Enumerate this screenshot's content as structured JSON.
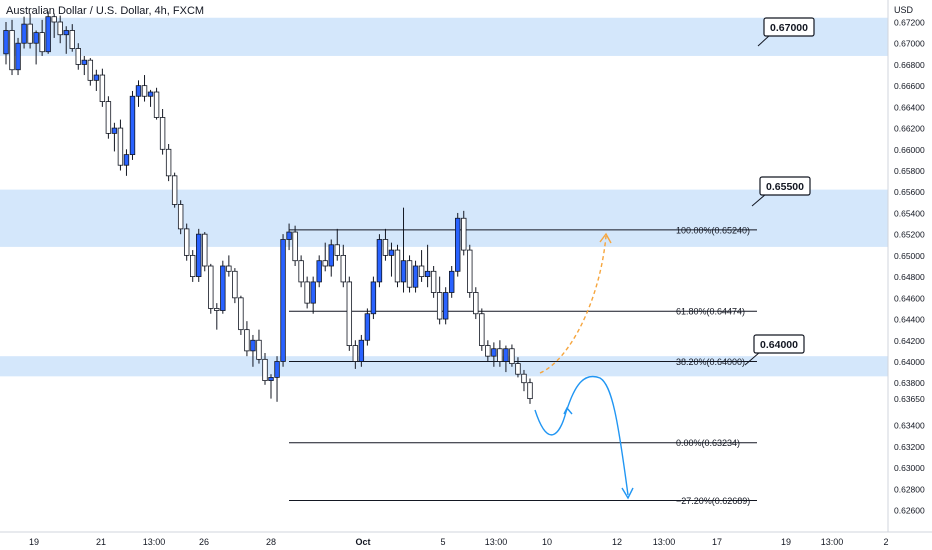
{
  "header": {
    "title": "Australian Dollar / U.S. Dollar, 4h, FXCM",
    "currency": "USD"
  },
  "chart_data": {
    "type": "candlestick",
    "title": "Australian Dollar / U.S. Dollar, 4h, FXCM",
    "y_unit": "USD",
    "ylim": [
      0.6252,
      0.6732
    ],
    "y_ticks": [
      0.672,
      0.67,
      0.668,
      0.666,
      0.664,
      0.662,
      0.66,
      0.658,
      0.656,
      0.654,
      0.652,
      0.65,
      0.648,
      0.646,
      0.644,
      0.642,
      0.64,
      0.638,
      0.6365,
      0.634,
      0.632,
      0.63,
      0.628,
      0.626
    ],
    "y_tick_labels": [
      "0.67200",
      "0.67000",
      "0.66800",
      "0.66600",
      "0.66400",
      "0.66200",
      "0.66000",
      "0.65800",
      "0.65600",
      "0.65400",
      "0.65200",
      "0.65000",
      "0.64800",
      "0.64600",
      "0.64400",
      "0.64200",
      "0.64000",
      "0.63800",
      "0.63650",
      "0.63400",
      "0.63200",
      "0.63000",
      "0.62800",
      "0.62600"
    ],
    "x_ticks": [
      "19",
      "21",
      "13:00",
      "26",
      "28",
      "Oct",
      "5",
      "13:00",
      "10",
      "12",
      "13:00",
      "17",
      "19",
      "13:00",
      "2"
    ],
    "grid": false,
    "colors": {
      "up": "#2962ff",
      "down": "#ffffff",
      "wick": "#131722",
      "zone": "#d4e7fb",
      "fib": "#131722",
      "arrow_up": "#f6a53d",
      "arrow_down": "#2196f3"
    },
    "zones": [
      {
        "low": 0.6688,
        "high": 0.6724,
        "label": "0.67000"
      },
      {
        "low": 0.6508,
        "high": 0.6562,
        "label": "0.65500"
      },
      {
        "low": 0.6386,
        "high": 0.6405,
        "label": "0.64000"
      }
    ],
    "fib_levels": [
      {
        "level": "100.00%",
        "price": 0.6524,
        "label": "100.00%(0.65240)"
      },
      {
        "level": "61.80%",
        "price": 0.64474,
        "label": "61.80%(0.64474)"
      },
      {
        "level": "38.20%",
        "price": 0.64,
        "label": "38.20%(0.64000)"
      },
      {
        "level": "0.00%",
        "price": 0.63234,
        "label": "0.00%(0.63234)"
      },
      {
        "level": "-27.20%",
        "price": 0.62689,
        "label": "−27.20%(0.62689)"
      }
    ],
    "candles": [
      [
        0.669,
        0.672,
        0.668,
        0.6712
      ],
      [
        0.6712,
        0.6722,
        0.667,
        0.6675
      ],
      [
        0.6675,
        0.6705,
        0.667,
        0.67
      ],
      [
        0.67,
        0.6725,
        0.6695,
        0.6718
      ],
      [
        0.6718,
        0.6728,
        0.6695,
        0.67
      ],
      [
        0.67,
        0.6712,
        0.668,
        0.671
      ],
      [
        0.671,
        0.6722,
        0.6688,
        0.6692
      ],
      [
        0.6692,
        0.673,
        0.669,
        0.6725
      ],
      [
        0.6725,
        0.6728,
        0.6705,
        0.672
      ],
      [
        0.672,
        0.6726,
        0.67,
        0.6708
      ],
      [
        0.6708,
        0.6716,
        0.669,
        0.6712
      ],
      [
        0.6712,
        0.6718,
        0.6692,
        0.6695
      ],
      [
        0.6695,
        0.67,
        0.6675,
        0.668
      ],
      [
        0.668,
        0.6688,
        0.667,
        0.6684
      ],
      [
        0.6684,
        0.6686,
        0.666,
        0.6665
      ],
      [
        0.6665,
        0.6675,
        0.6655,
        0.667
      ],
      [
        0.667,
        0.6676,
        0.664,
        0.6645
      ],
      [
        0.6645,
        0.665,
        0.661,
        0.6615
      ],
      [
        0.6615,
        0.6625,
        0.6598,
        0.662
      ],
      [
        0.662,
        0.6628,
        0.658,
        0.6585
      ],
      [
        0.6585,
        0.66,
        0.6575,
        0.6595
      ],
      [
        0.6595,
        0.6655,
        0.659,
        0.665
      ],
      [
        0.665,
        0.6665,
        0.664,
        0.666
      ],
      [
        0.666,
        0.667,
        0.6645,
        0.665
      ],
      [
        0.665,
        0.6656,
        0.664,
        0.6654
      ],
      [
        0.6654,
        0.6658,
        0.6628,
        0.663
      ],
      [
        0.663,
        0.6638,
        0.6595,
        0.66
      ],
      [
        0.66,
        0.6605,
        0.657,
        0.6575
      ],
      [
        0.6575,
        0.6578,
        0.6545,
        0.6548
      ],
      [
        0.6548,
        0.6552,
        0.652,
        0.6525
      ],
      [
        0.6525,
        0.653,
        0.6495,
        0.65
      ],
      [
        0.65,
        0.6505,
        0.6475,
        0.648
      ],
      [
        0.648,
        0.6525,
        0.6475,
        0.652
      ],
      [
        0.652,
        0.6522,
        0.6485,
        0.649
      ],
      [
        0.649,
        0.6492,
        0.6445,
        0.645
      ],
      [
        0.645,
        0.6455,
        0.643,
        0.6448
      ],
      [
        0.6448,
        0.6495,
        0.6445,
        0.649
      ],
      [
        0.649,
        0.65,
        0.648,
        0.6485
      ],
      [
        0.6485,
        0.6488,
        0.6455,
        0.646
      ],
      [
        0.646,
        0.6462,
        0.6425,
        0.643
      ],
      [
        0.643,
        0.6438,
        0.6405,
        0.641
      ],
      [
        0.641,
        0.6425,
        0.6395,
        0.642
      ],
      [
        0.642,
        0.643,
        0.6398,
        0.6402
      ],
      [
        0.6402,
        0.6408,
        0.6378,
        0.6382
      ],
      [
        0.6382,
        0.6388,
        0.6365,
        0.6385
      ],
      [
        0.6385,
        0.6405,
        0.6362,
        0.64
      ],
      [
        0.64,
        0.652,
        0.6395,
        0.6515
      ],
      [
        0.6515,
        0.653,
        0.6505,
        0.6522
      ],
      [
        0.6522,
        0.6528,
        0.649,
        0.6495
      ],
      [
        0.6495,
        0.65,
        0.647,
        0.6475
      ],
      [
        0.6475,
        0.648,
        0.645,
        0.6455
      ],
      [
        0.6455,
        0.648,
        0.6445,
        0.6475
      ],
      [
        0.6475,
        0.65,
        0.647,
        0.6495
      ],
      [
        0.6495,
        0.6512,
        0.6485,
        0.649
      ],
      [
        0.649,
        0.6515,
        0.648,
        0.651
      ],
      [
        0.651,
        0.6525,
        0.6495,
        0.65
      ],
      [
        0.65,
        0.651,
        0.647,
        0.6475
      ],
      [
        0.6475,
        0.648,
        0.641,
        0.6415
      ],
      [
        0.6415,
        0.642,
        0.6393,
        0.64
      ],
      [
        0.64,
        0.6425,
        0.6395,
        0.642
      ],
      [
        0.642,
        0.645,
        0.6415,
        0.6445
      ],
      [
        0.6445,
        0.648,
        0.644,
        0.6475
      ],
      [
        0.6475,
        0.652,
        0.647,
        0.6515
      ],
      [
        0.6515,
        0.6525,
        0.6495,
        0.65
      ],
      [
        0.65,
        0.6512,
        0.648,
        0.6505
      ],
      [
        0.6505,
        0.651,
        0.647,
        0.6475
      ],
      [
        0.6475,
        0.6545,
        0.6465,
        0.6495
      ],
      [
        0.6495,
        0.65,
        0.6465,
        0.647
      ],
      [
        0.647,
        0.6495,
        0.6465,
        0.649
      ],
      [
        0.649,
        0.6505,
        0.6475,
        0.648
      ],
      [
        0.648,
        0.651,
        0.647,
        0.6485
      ],
      [
        0.6485,
        0.649,
        0.646,
        0.6465
      ],
      [
        0.6465,
        0.648,
        0.6435,
        0.644
      ],
      [
        0.644,
        0.647,
        0.6435,
        0.6465
      ],
      [
        0.6465,
        0.649,
        0.646,
        0.6485
      ],
      [
        0.6485,
        0.654,
        0.648,
        0.6535
      ],
      [
        0.6535,
        0.6542,
        0.65,
        0.6505
      ],
      [
        0.6505,
        0.651,
        0.646,
        0.6465
      ],
      [
        0.6465,
        0.647,
        0.644,
        0.6445
      ],
      [
        0.6445,
        0.645,
        0.641,
        0.6415
      ],
      [
        0.6415,
        0.642,
        0.64,
        0.6405
      ],
      [
        0.6405,
        0.6418,
        0.6395,
        0.6412
      ],
      [
        0.6412,
        0.642,
        0.6395,
        0.64
      ],
      [
        0.64,
        0.6415,
        0.639,
        0.6412
      ],
      [
        0.6412,
        0.6416,
        0.6395,
        0.6398
      ],
      [
        0.6398,
        0.6404,
        0.6385,
        0.6388
      ],
      [
        0.6388,
        0.6392,
        0.6372,
        0.638
      ],
      [
        0.638,
        0.6384,
        0.636,
        0.6365
      ]
    ]
  },
  "price_labels": {
    "p67": "0.67000",
    "p655": "0.65500",
    "p64": "0.64000"
  }
}
